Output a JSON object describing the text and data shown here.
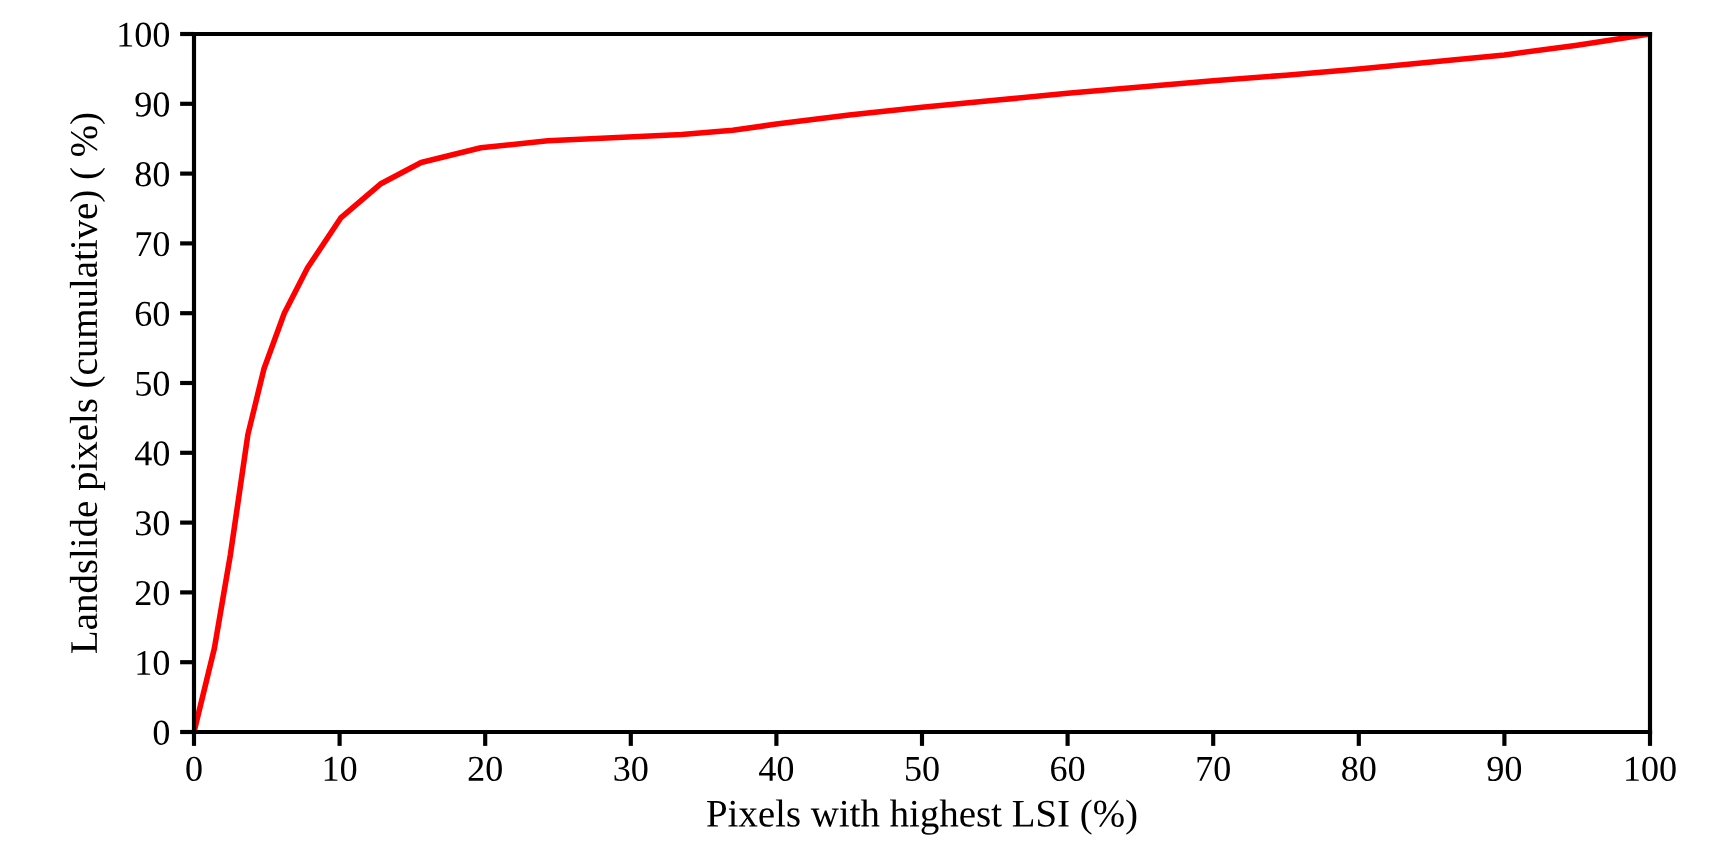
{
  "chart_data": {
    "type": "line",
    "xlabel": "Pixels with highest LSI (%)",
    "ylabel": "Landslide pixels (cumulative) ( %)",
    "xlim": [
      0,
      100
    ],
    "ylim": [
      0,
      100
    ],
    "xticks": [
      0,
      10,
      20,
      30,
      40,
      50,
      60,
      70,
      80,
      90,
      100
    ],
    "yticks": [
      0,
      10,
      20,
      30,
      40,
      50,
      60,
      70,
      80,
      90,
      100
    ],
    "grid": false,
    "legend": false,
    "marker": "none",
    "line_style": "solid",
    "series": [
      {
        "color": "#ff0000",
        "x": [
          0,
          1.4,
          2.5,
          3.7,
          4.8,
          6.2,
          7.8,
          10.1,
          12.8,
          15.6,
          19.7,
          24.3,
          33.5,
          37,
          40,
          45,
          50,
          55,
          60,
          65,
          70,
          75,
          80,
          85,
          90,
          95,
          100
        ],
        "values": [
          0,
          12,
          25.4,
          42.6,
          52,
          60,
          66.5,
          73.7,
          78.5,
          81.6,
          83.7,
          84.7,
          85.6,
          86.2,
          87.1,
          88.4,
          89.5,
          90.5,
          91.5,
          92.4,
          93.3,
          94.1,
          95,
          96,
          97,
          98.4,
          100
        ]
      }
    ]
  }
}
